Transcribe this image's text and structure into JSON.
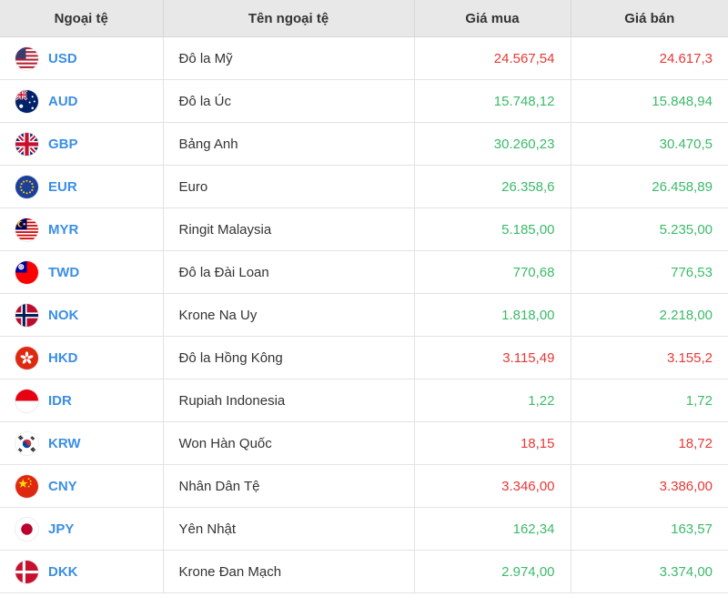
{
  "header": {
    "col_code": "Ngoại tệ",
    "col_name": "Tên ngoại tệ",
    "col_buy": "Giá mua",
    "col_sell": "Giá bán"
  },
  "colors": {
    "code": "#3a8ee6",
    "up": "#3cba6a",
    "down": "#e53935"
  },
  "rows": [
    {
      "flag": "us-flag-icon",
      "code": "USD",
      "name": "Đô la Mỹ",
      "buy": "24.567,54",
      "sell": "24.617,3",
      "buy_trend": "down",
      "sell_trend": "down"
    },
    {
      "flag": "au-flag-icon",
      "code": "AUD",
      "name": "Đô la Úc",
      "buy": "15.748,12",
      "sell": "15.848,94",
      "buy_trend": "up",
      "sell_trend": "up"
    },
    {
      "flag": "gb-flag-icon",
      "code": "GBP",
      "name": "Bảng Anh",
      "buy": "30.260,23",
      "sell": "30.470,5",
      "buy_trend": "up",
      "sell_trend": "up"
    },
    {
      "flag": "eu-flag-icon",
      "code": "EUR",
      "name": "Euro",
      "buy": "26.358,6",
      "sell": "26.458,89",
      "buy_trend": "up",
      "sell_trend": "up"
    },
    {
      "flag": "my-flag-icon",
      "code": "MYR",
      "name": "Ringit Malaysia",
      "buy": "5.185,00",
      "sell": "5.235,00",
      "buy_trend": "up",
      "sell_trend": "up"
    },
    {
      "flag": "tw-flag-icon",
      "code": "TWD",
      "name": "Đô la Đài Loan",
      "buy": "770,68",
      "sell": "776,53",
      "buy_trend": "up",
      "sell_trend": "up"
    },
    {
      "flag": "no-flag-icon",
      "code": "NOK",
      "name": "Krone Na Uy",
      "buy": "1.818,00",
      "sell": "2.218,00",
      "buy_trend": "up",
      "sell_trend": "up"
    },
    {
      "flag": "hk-flag-icon",
      "code": "HKD",
      "name": "Đô la Hồng Kông",
      "buy": "3.115,49",
      "sell": "3.155,2",
      "buy_trend": "down",
      "sell_trend": "down"
    },
    {
      "flag": "id-flag-icon",
      "code": "IDR",
      "name": "Rupiah Indonesia",
      "buy": "1,22",
      "sell": "1,72",
      "buy_trend": "up",
      "sell_trend": "up"
    },
    {
      "flag": "kr-flag-icon",
      "code": "KRW",
      "name": "Won Hàn Quốc",
      "buy": "18,15",
      "sell": "18,72",
      "buy_trend": "down",
      "sell_trend": "down"
    },
    {
      "flag": "cn-flag-icon",
      "code": "CNY",
      "name": "Nhân Dân Tệ",
      "buy": "3.346,00",
      "sell": "3.386,00",
      "buy_trend": "down",
      "sell_trend": "down"
    },
    {
      "flag": "jp-flag-icon",
      "code": "JPY",
      "name": "Yên Nhật",
      "buy": "162,34",
      "sell": "163,57",
      "buy_trend": "up",
      "sell_trend": "up"
    },
    {
      "flag": "dk-flag-icon",
      "code": "DKK",
      "name": "Krone Đan Mạch",
      "buy": "2.974,00",
      "sell": "3.374,00",
      "buy_trend": "up",
      "sell_trend": "up"
    }
  ]
}
